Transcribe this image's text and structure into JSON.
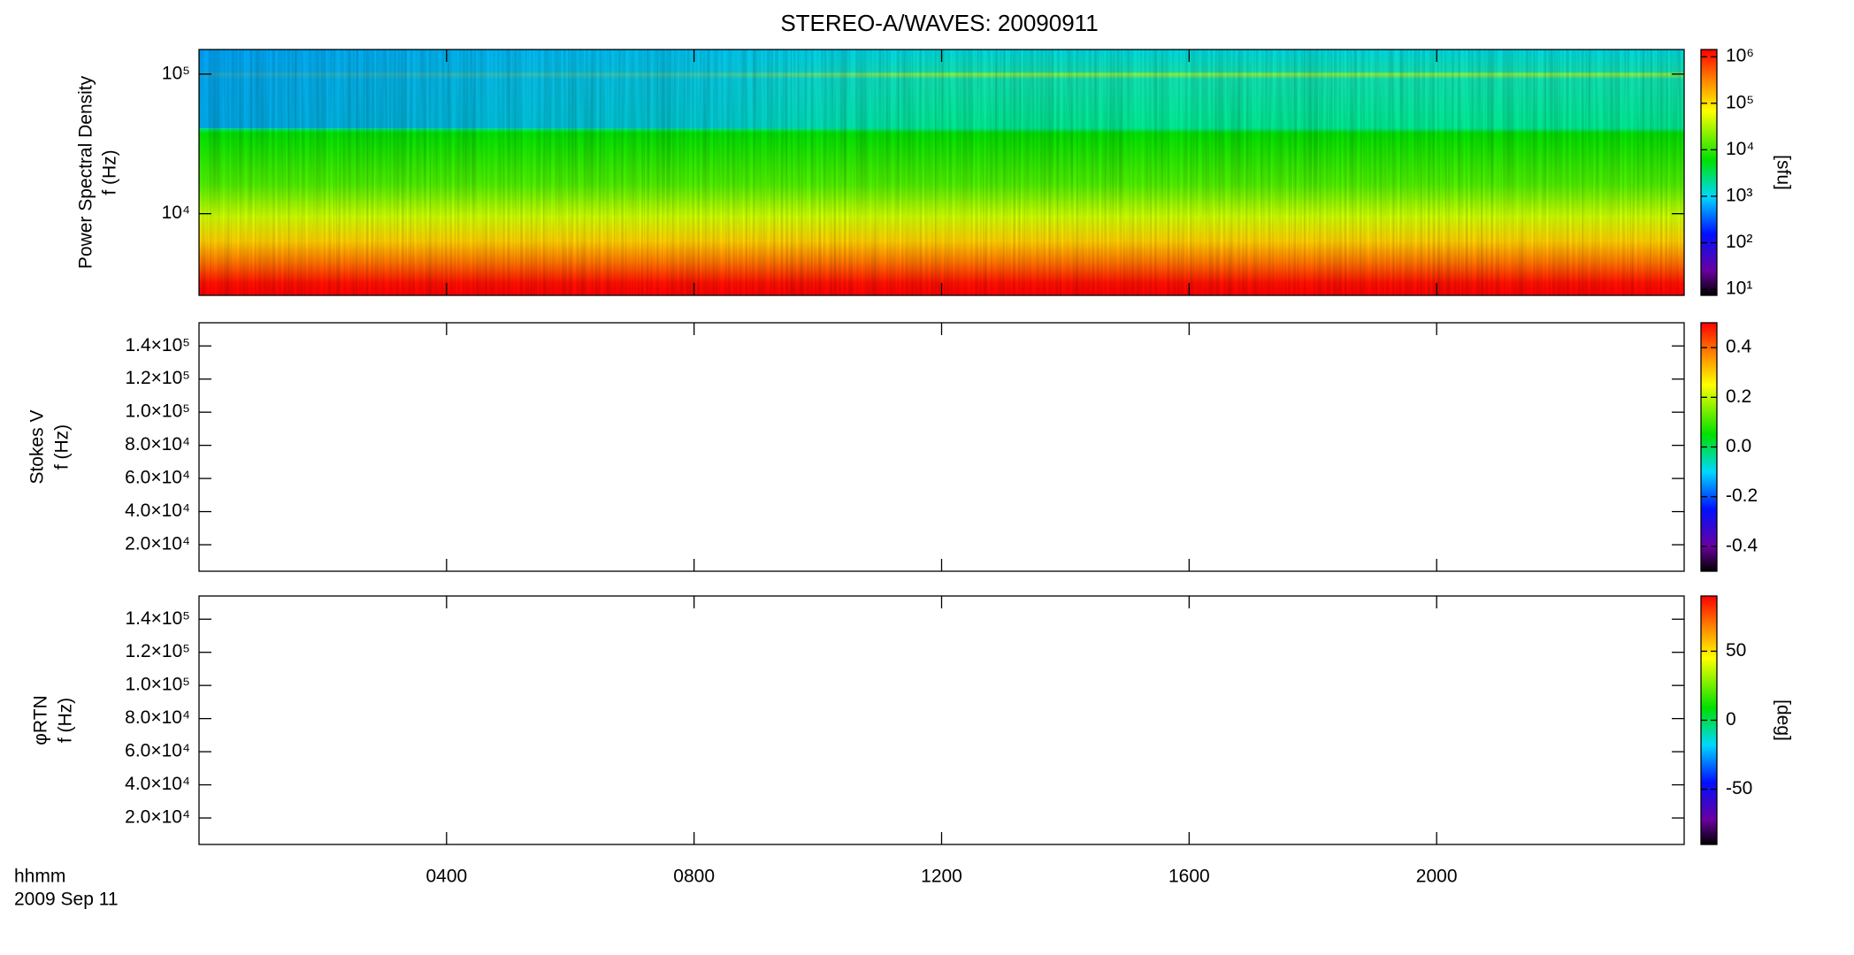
{
  "chart_data": [
    {
      "type": "heatmap",
      "title": "STEREO-A/WAVES: 20090911",
      "ylabel": [
        "Power Spectral Density",
        "f (Hz)"
      ],
      "log": true,
      "ylim": [
        2600,
        150000
      ],
      "yticks": [
        {
          "value": 10000,
          "label": "10⁴"
        },
        {
          "value": 100000,
          "label": "10⁵"
        }
      ],
      "colorbar": {
        "log": true,
        "lim": [
          7.4,
          1430000
        ],
        "label": "[sfu]",
        "ticks": [
          {
            "value": 10,
            "label": "10¹"
          },
          {
            "value": 100,
            "label": "10²"
          },
          {
            "value": 1000,
            "label": "10³"
          },
          {
            "value": 10000,
            "label": "10⁴"
          },
          {
            "value": 100000,
            "label": "10⁵"
          },
          {
            "value": 1000000,
            "label": "10⁶"
          }
        ]
      }
    },
    {
      "type": "heatmap",
      "ylabel": [
        "Stokes V",
        "f (Hz)"
      ],
      "log": false,
      "ylim": [
        4000,
        154000
      ],
      "yticks": [
        {
          "value": 20000,
          "label": "2.0×10⁴"
        },
        {
          "value": 40000,
          "label": "4.0×10⁴"
        },
        {
          "value": 60000,
          "label": "6.0×10⁴"
        },
        {
          "value": 80000,
          "label": "8.0×10⁴"
        },
        {
          "value": 100000,
          "label": "1.0×10⁵"
        },
        {
          "value": 120000,
          "label": "1.2×10⁵"
        },
        {
          "value": 140000,
          "label": "1.4×10⁵"
        }
      ],
      "colorbar": {
        "log": false,
        "lim": [
          -0.5,
          0.5
        ],
        "ticks": [
          -0.4,
          -0.2,
          {
            "value": 0,
            "label": "0.0"
          },
          0.2,
          0.4
        ]
      }
    },
    {
      "type": "heatmap",
      "ylabel": [
        "φRTN",
        "f (Hz)"
      ],
      "log": false,
      "ylim": [
        4000,
        154000
      ],
      "yticks": [
        {
          "value": 20000,
          "label": "2.0×10⁴"
        },
        {
          "value": 40000,
          "label": "4.0×10⁴"
        },
        {
          "value": 60000,
          "label": "6.0×10⁴"
        },
        {
          "value": 80000,
          "label": "8.0×10⁴"
        },
        {
          "value": 100000,
          "label": "1.0×10⁵"
        },
        {
          "value": 120000,
          "label": "1.2×10⁵"
        },
        {
          "value": 140000,
          "label": "1.4×10⁵"
        }
      ],
      "colorbar": {
        "log": false,
        "lim": [
          -90,
          90
        ],
        "label": "[deg]",
        "ticks": [
          -50,
          0,
          50
        ]
      },
      "xlabel": [
        "hhmm",
        "2009 Sep 11"
      ],
      "xlim": [
        0,
        24
      ],
      "xticks": [
        {
          "value": 4,
          "label": "0400"
        },
        {
          "value": 8,
          "label": "0800"
        },
        {
          "value": 12,
          "label": "1200"
        },
        {
          "value": 16,
          "label": "1600"
        },
        {
          "value": 20,
          "label": "2000"
        }
      ]
    }
  ]
}
